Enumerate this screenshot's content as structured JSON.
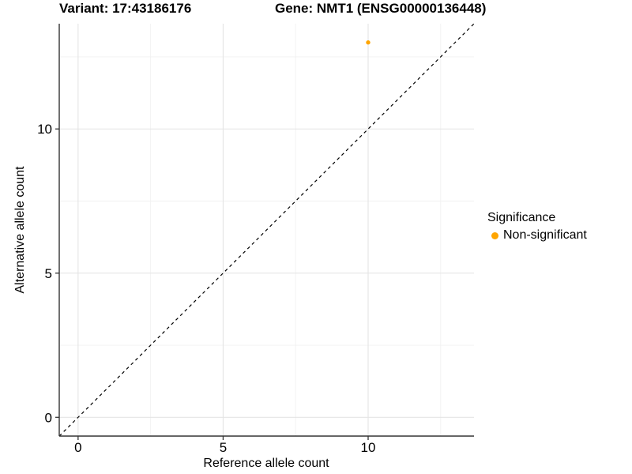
{
  "chart_data": {
    "type": "scatter",
    "titles": {
      "variant": "Variant: 17:43186176",
      "gene": "Gene: NMT1 (ENSG00000136448)"
    },
    "xlabel": "Reference allele count",
    "ylabel": "Alternative allele count",
    "xlim": [
      -0.65,
      13.65
    ],
    "ylim": [
      -0.65,
      13.65
    ],
    "x_ticks": [
      0,
      5,
      10
    ],
    "y_ticks": [
      0,
      5,
      10
    ],
    "x_minor_gridlines": [
      2.5,
      7.5,
      12.5
    ],
    "y_minor_gridlines": [
      2.5,
      7.5,
      12.5
    ],
    "grid": true,
    "points": [
      {
        "x": 10,
        "y": 13,
        "series": "Non-significant",
        "color": "#FFA500"
      }
    ],
    "reference_line": {
      "type": "identity",
      "style": "dashed",
      "from": [
        -0.65,
        -0.65
      ],
      "to": [
        13.65,
        13.65
      ],
      "color": "#000000"
    },
    "legend": {
      "title": "Significance",
      "position": "right",
      "entries": [
        {
          "label": "Non-significant",
          "color": "#FFA500"
        }
      ]
    },
    "colors": {
      "axis_line": "#333333",
      "tick_mark": "#333333",
      "tick_label": "#000000",
      "grid_major": "#E4E4E4",
      "grid_minor": "#F1F1F1",
      "background": "#FFFFFF"
    }
  }
}
